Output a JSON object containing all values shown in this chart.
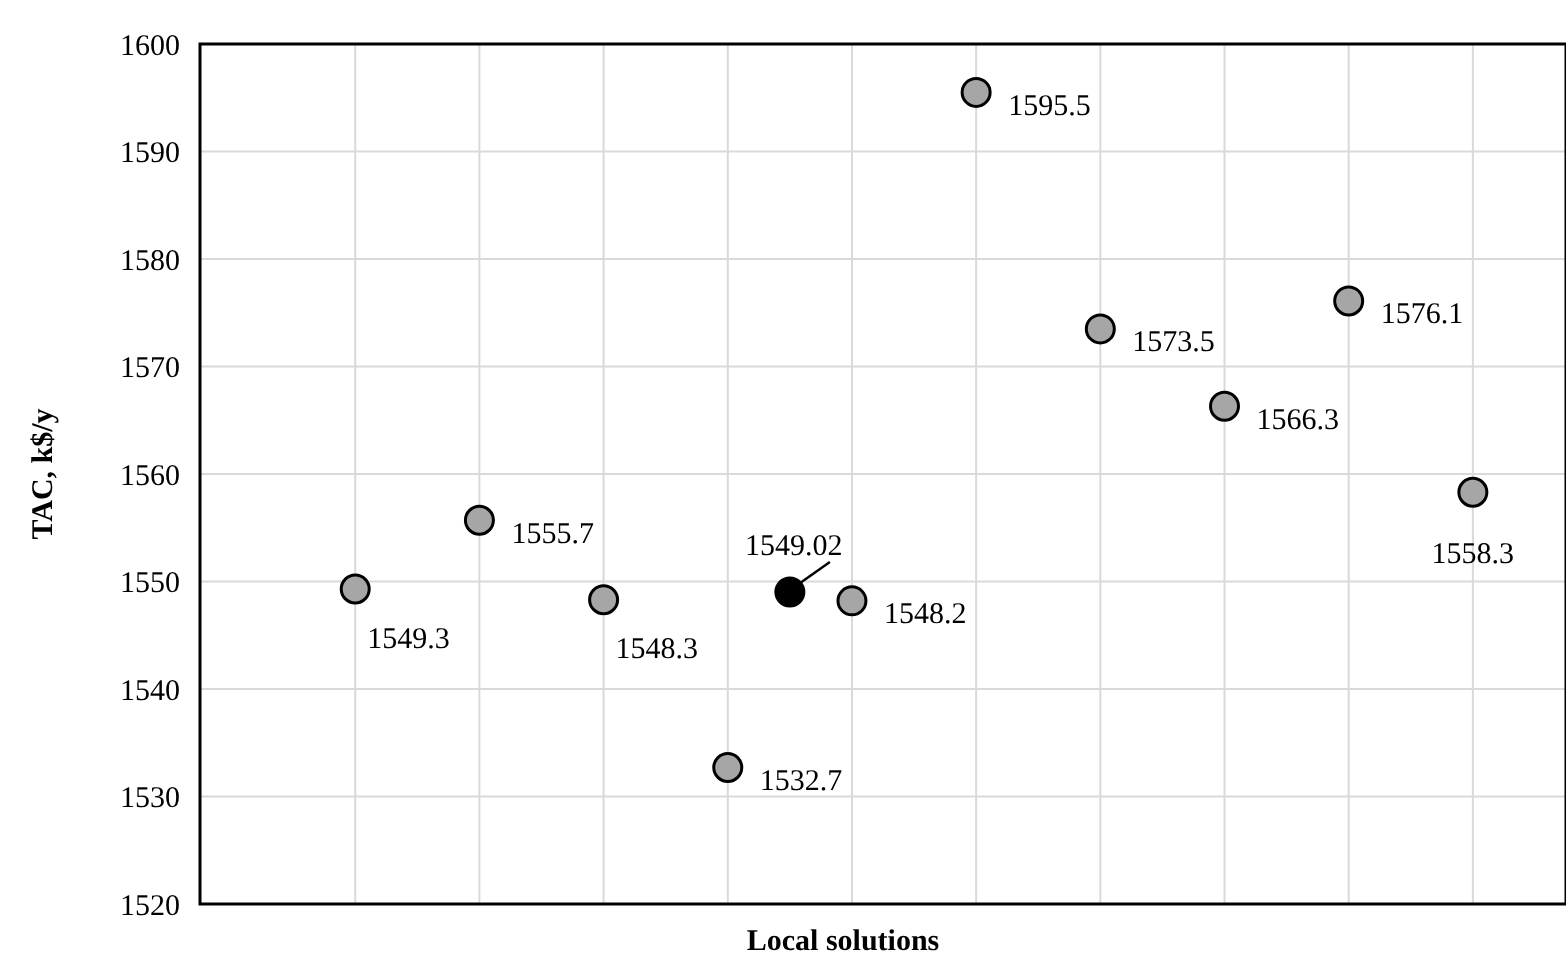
{
  "chart_data": {
    "type": "scatter",
    "xlabel": "Local solutions",
    "ylabel": "TAC, k$/y",
    "categories": [
      null,
      null,
      null,
      null,
      null,
      null,
      null,
      null,
      null,
      null,
      null,
      null,
      null,
      null,
      null,
      null,
      null,
      null,
      null,
      null,
      null,
      null
    ],
    "ylim": [
      1520,
      1600
    ],
    "yticks": [
      1520,
      1530,
      1540,
      1550,
      1560,
      1570,
      1580,
      1590,
      1600
    ],
    "tick_labels": "y",
    "grid": true,
    "marker": "circle",
    "data_labels": true,
    "series": [
      {
        "color": "#a6a6a6",
        "values": [
          null,
          null,
          1549.3,
          null,
          1555.7,
          null,
          1548.3,
          null,
          1532.7,
          null,
          1548.2,
          null,
          1595.5,
          null,
          1573.5,
          null,
          1566.3,
          null,
          1576.1,
          null,
          1558.3,
          null
        ]
      },
      {
        "color": "#000000",
        "values": [
          null,
          null,
          null,
          null,
          null,
          null,
          null,
          null,
          null,
          1549.02,
          null,
          null,
          null,
          null,
          null,
          null,
          null,
          null,
          null,
          null,
          null,
          null
        ]
      }
    ]
  }
}
